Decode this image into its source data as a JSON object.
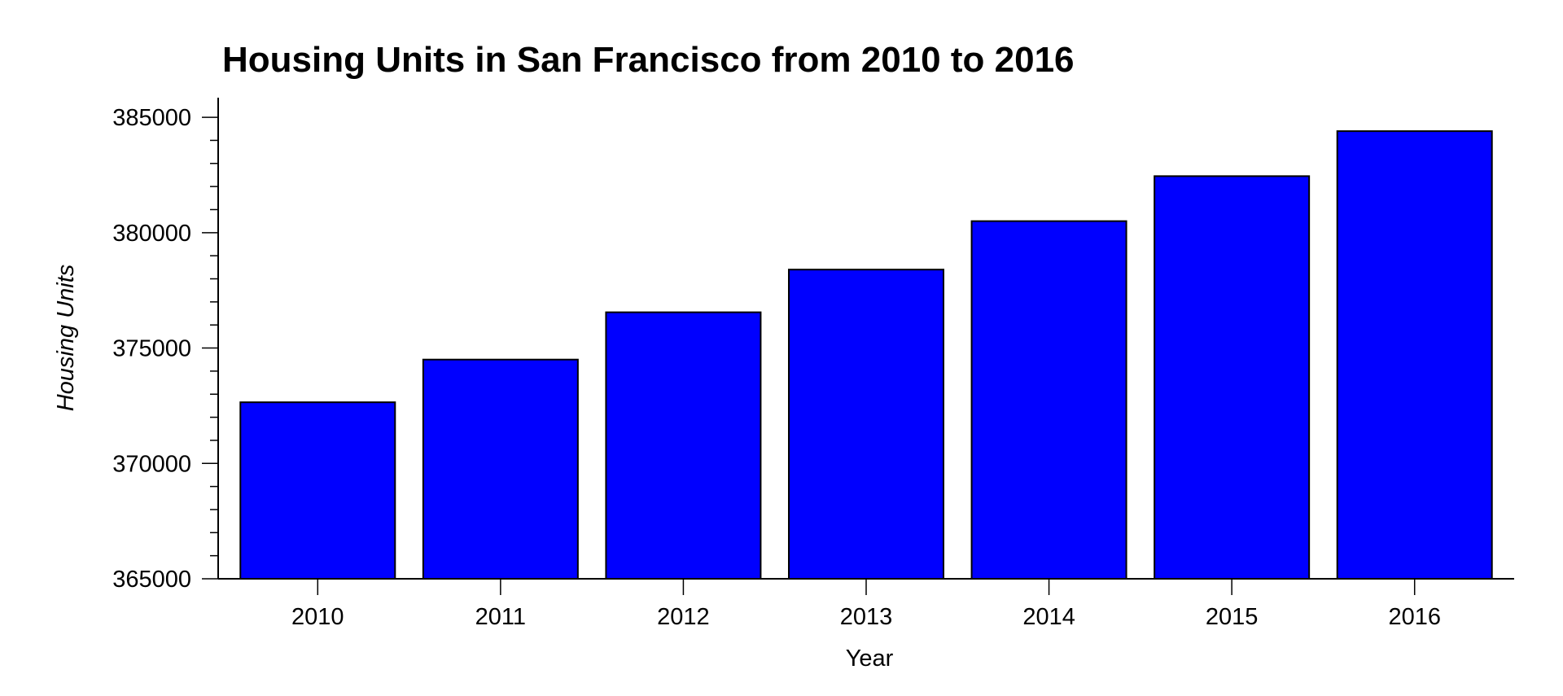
{
  "chart_data": {
    "type": "bar",
    "title": "Housing Units in San Francisco from 2010 to 2016",
    "xlabel": "Year",
    "ylabel": "Housing Units",
    "categories": [
      "2010",
      "2011",
      "2012",
      "2013",
      "2014",
      "2015",
      "2016"
    ],
    "values": [
      372650,
      374500,
      376550,
      378400,
      380500,
      382450,
      384400
    ],
    "ylim": [
      365000,
      385850
    ],
    "y_major_ticks": [
      365000,
      370000,
      375000,
      380000,
      385000
    ],
    "y_tick_labels": [
      "365000",
      "370000",
      "375000",
      "380000",
      "385000"
    ],
    "y_minor_tick_step": 1000,
    "bar_color": "#0000ff",
    "bar_edge_color": "#000000",
    "grid": false,
    "legend": "none"
  }
}
